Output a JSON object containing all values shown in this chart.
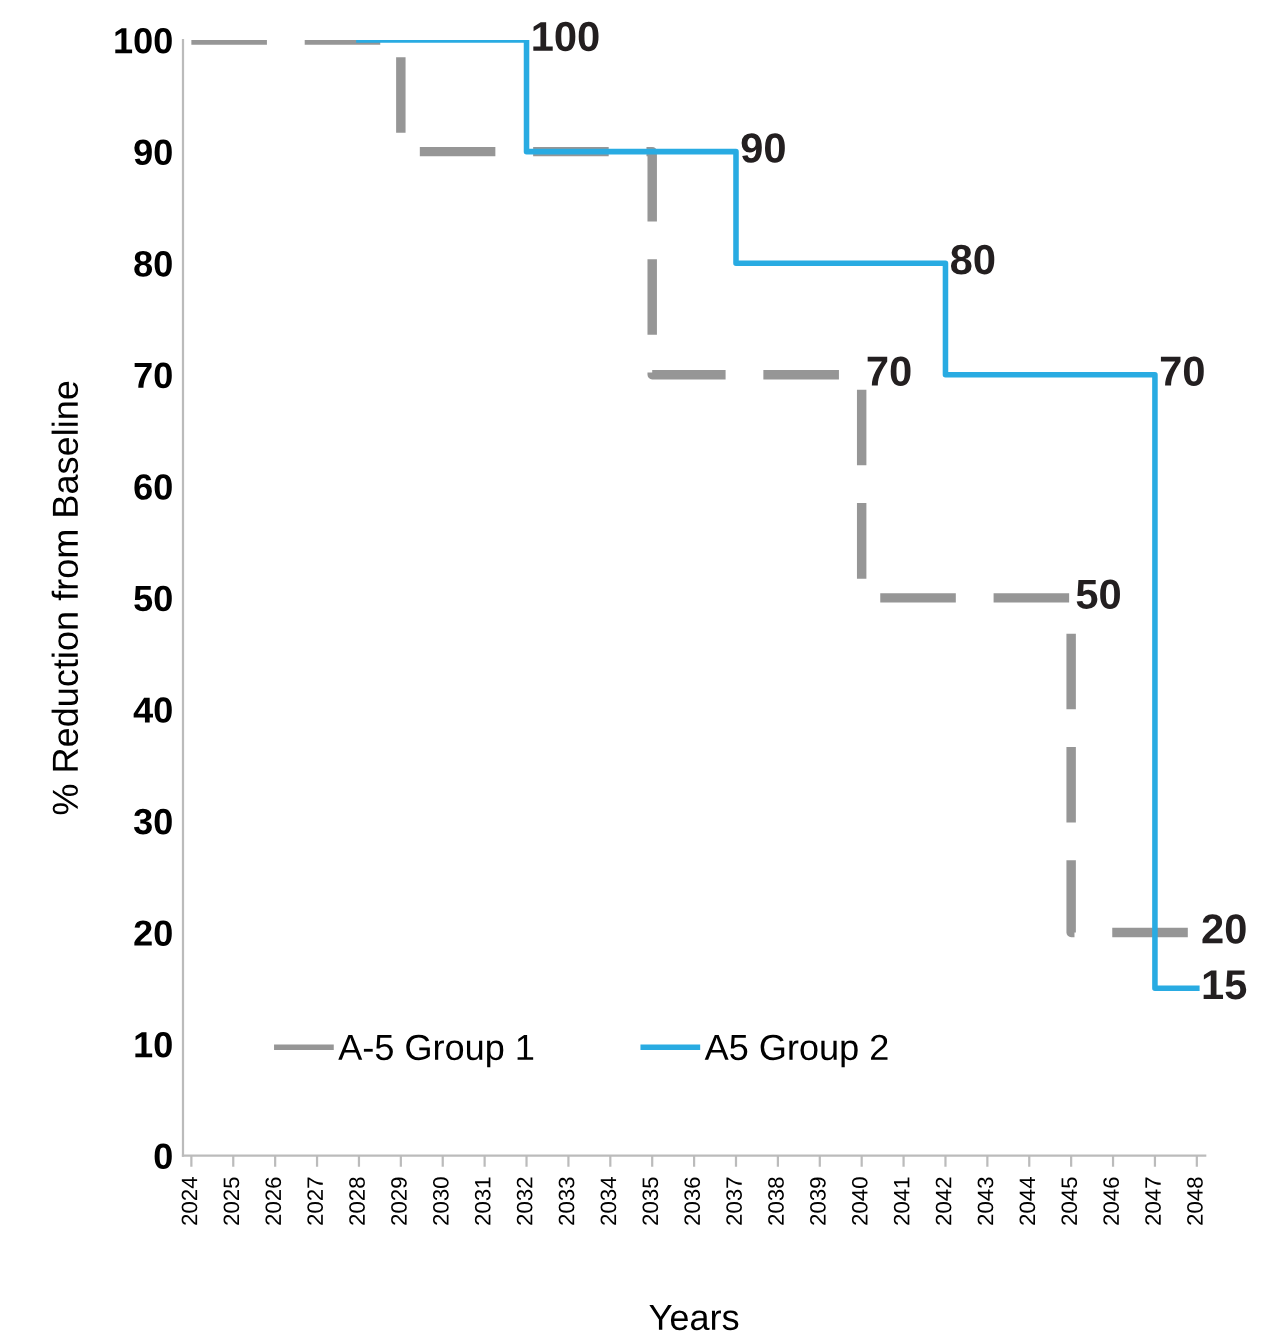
{
  "chart_data": {
    "type": "step",
    "xlabel": "Years",
    "ylabel": "% Reduction from Baseline",
    "categories": [
      "2024",
      "2025",
      "2026",
      "2027",
      "2028",
      "2029",
      "2030",
      "2031",
      "2032",
      "2033",
      "2034",
      "2035",
      "2036",
      "2037",
      "2038",
      "2039",
      "2040",
      "2041",
      "2042",
      "2043",
      "2044",
      "2045",
      "2046",
      "2047",
      "2048"
    ],
    "series": [
      {
        "name": "A-5 Group 1",
        "color": "#969696",
        "line_style": "dashed",
        "values": [
          100,
          100,
          100,
          100,
          100,
          90,
          90,
          90,
          90,
          90,
          90,
          70,
          70,
          70,
          70,
          70,
          50,
          50,
          50,
          50,
          50,
          20,
          20,
          20,
          20
        ],
        "value_labels": [
          null,
          null,
          null,
          null,
          null,
          null,
          null,
          null,
          null,
          null,
          null,
          null,
          null,
          null,
          null,
          "70",
          null,
          null,
          null,
          null,
          "50",
          null,
          null,
          null,
          "20"
        ]
      },
      {
        "name": "A5 Group 2",
        "color": "#29abe2",
        "line_style": "solid",
        "values": [
          null,
          null,
          null,
          null,
          100,
          100,
          100,
          100,
          90,
          90,
          90,
          90,
          90,
          80,
          80,
          80,
          80,
          80,
          70,
          70,
          70,
          70,
          70,
          15,
          15
        ],
        "value_labels": [
          null,
          null,
          null,
          null,
          null,
          null,
          null,
          "100",
          null,
          null,
          null,
          null,
          "90",
          null,
          null,
          null,
          null,
          "80",
          null,
          null,
          null,
          null,
          "70",
          null,
          "15"
        ]
      }
    ],
    "ylim": [
      0,
      100
    ],
    "yticks": [
      0,
      10,
      20,
      30,
      40,
      50,
      60,
      70,
      80,
      90,
      100
    ],
    "grid": false,
    "legend": "bottom left"
  }
}
